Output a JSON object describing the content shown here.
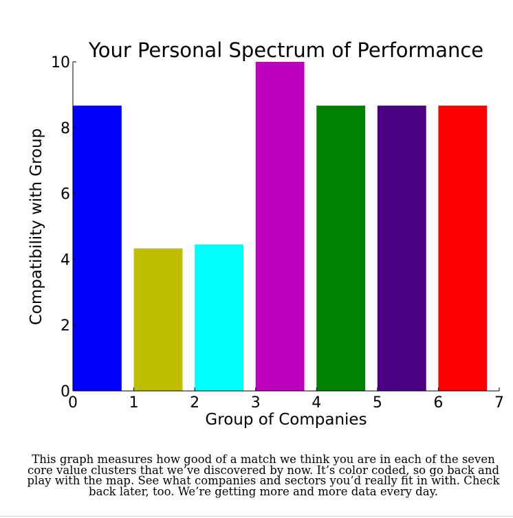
{
  "caption": "This graph measures how good of a match we think you are in each of the seven core value clusters that we’ve discovered by now. It’s color coded, so go back and play with the map. See what companies and sectors you’d really fit in with. Check back later, too. We’re getting more and more data every day.",
  "chart_data": {
    "type": "bar",
    "title": "Your Personal Spectrum of Performance",
    "xlabel": "Group of Companies",
    "ylabel": "Compatibility with Group",
    "xlim": [
      0,
      7
    ],
    "ylim": [
      0,
      10
    ],
    "xticks": [
      0,
      1,
      2,
      3,
      4,
      5,
      6,
      7
    ],
    "yticks": [
      0,
      2,
      4,
      6,
      8,
      10
    ],
    "bar_width": 0.8,
    "grid": false,
    "legend": "none",
    "bars": [
      {
        "x": 0,
        "value": 8.67,
        "color": "#0000ff"
      },
      {
        "x": 1,
        "value": 4.33,
        "color": "#bfbf00"
      },
      {
        "x": 2,
        "value": 4.45,
        "color": "#00ffff"
      },
      {
        "x": 3,
        "value": 10.0,
        "color": "#bf00bf"
      },
      {
        "x": 4,
        "value": 8.67,
        "color": "#008000"
      },
      {
        "x": 5,
        "value": 8.67,
        "color": "#4b0082"
      },
      {
        "x": 6,
        "value": 8.67,
        "color": "#ff0000"
      }
    ]
  }
}
